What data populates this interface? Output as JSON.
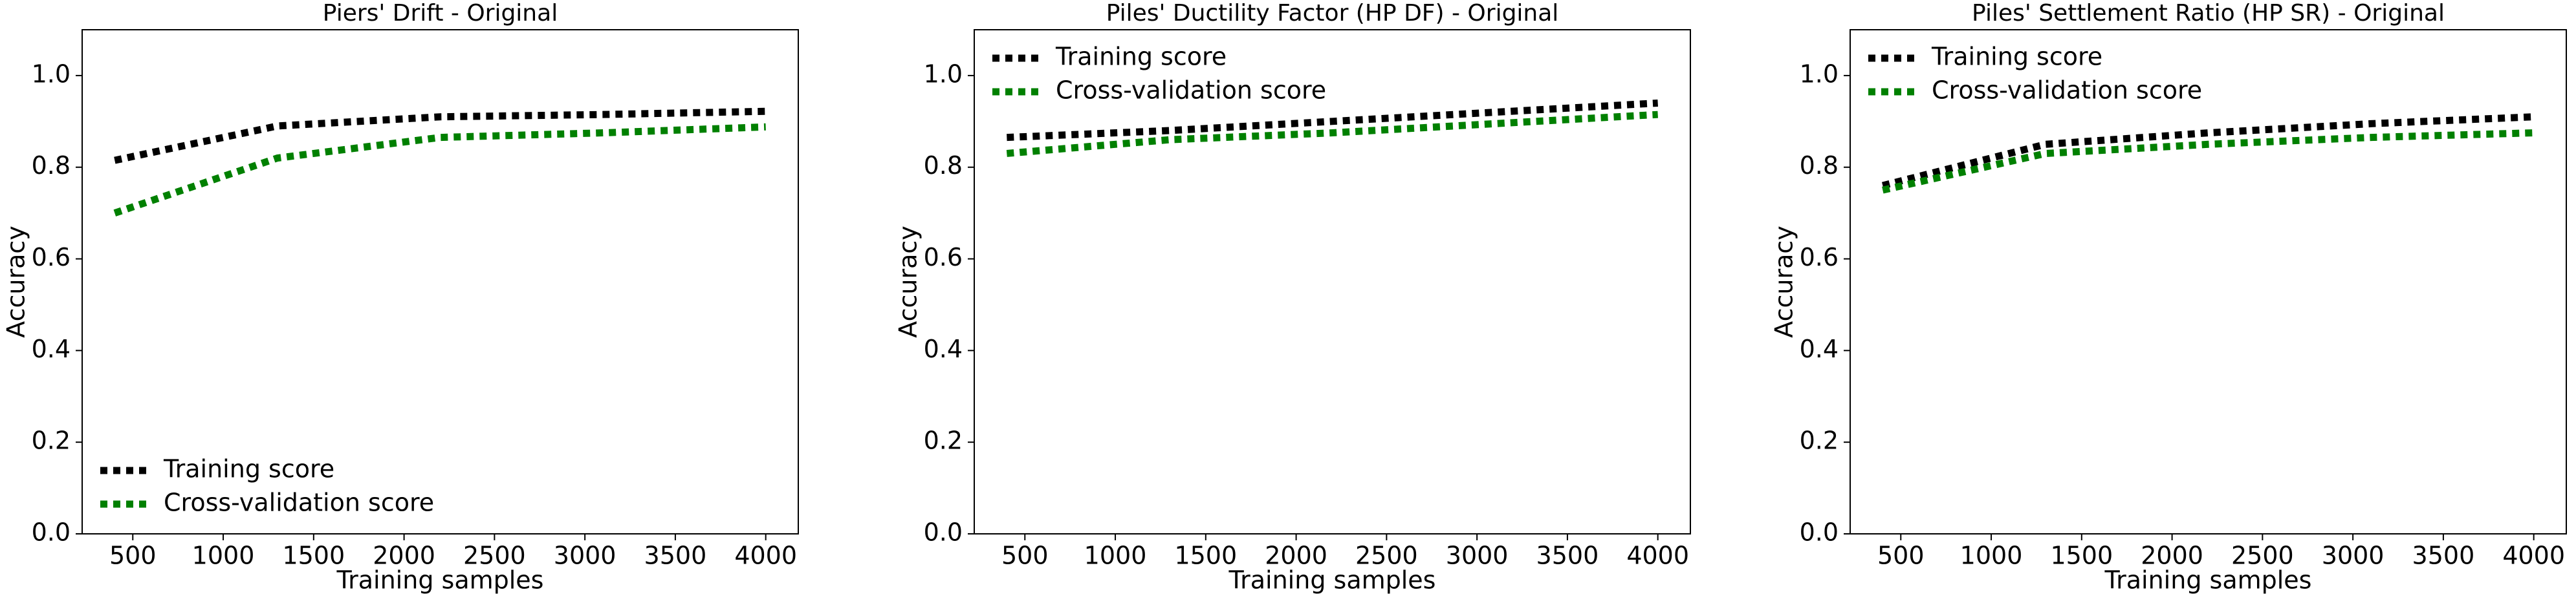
{
  "chart_data": [
    {
      "type": "line",
      "title": "Piers' Drift - Original",
      "xlabel": "Training samples",
      "ylabel": "Accuracy",
      "x": [
        400,
        1300,
        2200,
        3100,
        4000
      ],
      "series": [
        {
          "name": "Training score",
          "color": "#000000",
          "values": [
            0.815,
            0.89,
            0.91,
            0.915,
            0.922
          ]
        },
        {
          "name": "Cross-validation score",
          "color": "#008000",
          "values": [
            0.7,
            0.82,
            0.865,
            0.875,
            0.888
          ]
        }
      ],
      "xlim": [
        220,
        4180
      ],
      "xticks": [
        500,
        1000,
        1500,
        2000,
        2500,
        3000,
        3500,
        4000
      ],
      "ylim": [
        0,
        1.1
      ],
      "yticks": [
        {
          "value": 0,
          "label": "0.0"
        },
        {
          "value": 0.2,
          "label": "0.2"
        },
        {
          "value": 0.4,
          "label": "0.4"
        },
        {
          "value": 0.6,
          "label": "0.6"
        },
        {
          "value": 0.8,
          "label": "0.8"
        },
        {
          "value": 1,
          "label": "1.0"
        }
      ],
      "legend": "lower left"
    },
    {
      "type": "line",
      "title": "Piles' Ductility Factor (HP DF) - Original",
      "xlabel": "Training samples",
      "ylabel": "Accuracy",
      "x": [
        400,
        1300,
        2200,
        3100,
        4000
      ],
      "series": [
        {
          "name": "Training score",
          "color": "#000000",
          "values": [
            0.865,
            0.88,
            0.9,
            0.92,
            0.94
          ]
        },
        {
          "name": "Cross-validation score",
          "color": "#008000",
          "values": [
            0.83,
            0.86,
            0.875,
            0.895,
            0.915
          ]
        }
      ],
      "xlim": [
        220,
        4180
      ],
      "xticks": [
        500,
        1000,
        1500,
        2000,
        2500,
        3000,
        3500,
        4000
      ],
      "ylim": [
        0,
        1.1
      ],
      "yticks": [
        {
          "value": 0,
          "label": "0.0"
        },
        {
          "value": 0.2,
          "label": "0.2"
        },
        {
          "value": 0.4,
          "label": "0.4"
        },
        {
          "value": 0.6,
          "label": "0.6"
        },
        {
          "value": 0.8,
          "label": "0.8"
        },
        {
          "value": 1,
          "label": "1.0"
        }
      ],
      "legend": "upper left"
    },
    {
      "type": "line",
      "title": "Piles' Settlement Ratio (HP SR) - Original",
      "xlabel": "Training samples",
      "ylabel": "Accuracy",
      "x": [
        400,
        1300,
        2200,
        3100,
        4000
      ],
      "series": [
        {
          "name": "Training score",
          "color": "#000000",
          "values": [
            0.76,
            0.85,
            0.875,
            0.895,
            0.91
          ]
        },
        {
          "name": "Cross-validation score",
          "color": "#008000",
          "values": [
            0.75,
            0.83,
            0.85,
            0.865,
            0.875
          ]
        }
      ],
      "xlim": [
        220,
        4180
      ],
      "xticks": [
        500,
        1000,
        1500,
        2000,
        2500,
        3000,
        3500,
        4000
      ],
      "ylim": [
        0,
        1.1
      ],
      "yticks": [
        {
          "value": 0,
          "label": "0.0"
        },
        {
          "value": 0.2,
          "label": "0.2"
        },
        {
          "value": 0.4,
          "label": "0.4"
        },
        {
          "value": 0.6,
          "label": "0.6"
        },
        {
          "value": 0.8,
          "label": "0.8"
        },
        {
          "value": 1,
          "label": "1.0"
        }
      ],
      "legend": "upper left"
    }
  ]
}
